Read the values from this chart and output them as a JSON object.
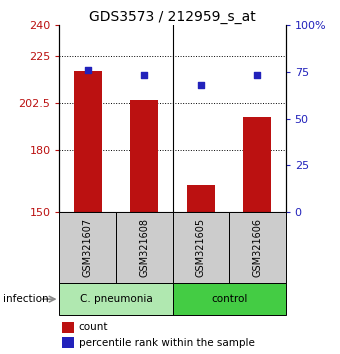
{
  "title": "GDS3573 / 212959_s_at",
  "samples": [
    "GSM321607",
    "GSM321608",
    "GSM321605",
    "GSM321606"
  ],
  "counts": [
    218,
    204,
    163,
    196
  ],
  "percentiles": [
    76,
    73,
    68,
    73
  ],
  "ylim_left": [
    150,
    240
  ],
  "ylim_right": [
    0,
    100
  ],
  "yticks_left": [
    150,
    180,
    202.5,
    225,
    240
  ],
  "yticks_right": [
    0,
    25,
    50,
    75,
    100
  ],
  "ytick_right_labels": [
    "0",
    "25",
    "50",
    "75",
    "100%"
  ],
  "hgrid_lines": [
    180,
    202.5,
    225
  ],
  "bar_color": "#bb1111",
  "dot_color": "#2222bb",
  "bar_width": 0.5,
  "group_split": 1.5,
  "group_colors": [
    "#b0e8b0",
    "#44cc44"
  ],
  "group_labels": [
    "C. pneumonia",
    "control"
  ],
  "sample_box_color": "#cccccc",
  "legend_bar_label": "count",
  "legend_dot_label": "percentile rank within the sample",
  "infection_label": "infection",
  "title_fontsize": 10,
  "tick_fontsize": 8,
  "label_fontsize": 8
}
